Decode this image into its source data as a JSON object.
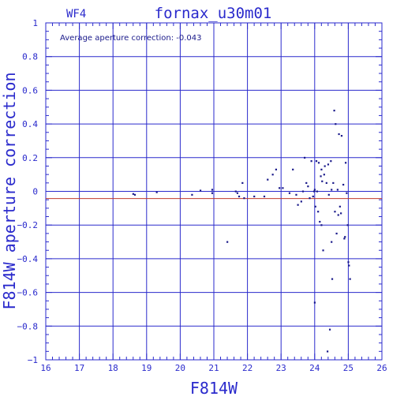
{
  "chart_data": {
    "type": "scatter",
    "chip_label": "WF4",
    "title": "fornax_u30m01",
    "xlabel": "F814W",
    "ylabel": "F814W aperture correction",
    "annotation": "Average aperture correction: -0.043",
    "xlim": [
      16,
      26
    ],
    "ylim": [
      -1,
      1
    ],
    "x_ticks": [
      16,
      17,
      18,
      19,
      20,
      21,
      22,
      23,
      24,
      25,
      26
    ],
    "y_ticks": [
      1,
      0.8,
      0.6,
      0.4,
      0.2,
      0,
      -0.2,
      -0.4,
      -0.6,
      -0.8,
      -1
    ],
    "x_tick_labels": [
      "16",
      "17",
      "18",
      "19",
      "20",
      "21",
      "22",
      "23",
      "24",
      "25",
      "26"
    ],
    "y_tick_labels": [
      "1",
      "0.8",
      "0.6",
      "0.4",
      "0.2",
      "0",
      "−0.2",
      "−0.4",
      "−0.6",
      "−0.8",
      "−1"
    ],
    "average_line": -0.043,
    "grid": true,
    "colors": {
      "axes": "#2a2acc",
      "grid": "#2a2acc",
      "points": "#1a1a8a",
      "average_line": "#c0392b"
    },
    "series": [
      {
        "x": [
          18.6,
          18.65,
          19.3,
          20.35,
          20.6,
          20.95,
          20.95,
          21.4,
          21.65,
          21.7,
          21.75,
          21.85,
          21.9,
          22.2,
          22.5,
          22.6,
          22.75,
          22.85,
          22.95,
          23.05,
          23.25,
          23.35,
          23.45,
          23.5,
          23.6,
          23.65,
          23.7,
          23.75,
          23.8,
          23.85,
          23.9,
          23.95,
          23.98,
          24.0,
          24.0,
          24.02,
          24.05,
          24.07,
          24.1,
          24.12,
          24.15,
          24.18,
          24.2,
          24.2,
          24.22,
          24.25,
          24.28,
          24.3,
          24.35,
          24.38,
          24.4,
          24.42,
          24.45,
          24.48,
          24.5,
          24.5,
          24.52,
          24.55,
          24.58,
          24.6,
          24.62,
          24.65,
          24.68,
          24.7,
          24.72,
          24.75,
          24.78,
          24.8,
          24.85,
          24.88,
          24.9,
          24.92,
          24.95,
          24.98,
          25.0,
          25.02,
          25.05
        ],
        "y": [
          -0.015,
          -0.02,
          -0.005,
          -0.02,
          0.005,
          0.01,
          -0.01,
          -0.3,
          0.0,
          -0.01,
          -0.03,
          0.05,
          -0.04,
          -0.03,
          -0.03,
          0.07,
          0.1,
          0.13,
          0.02,
          0.02,
          -0.01,
          0.13,
          -0.02,
          -0.08,
          -0.06,
          0.0,
          0.2,
          0.05,
          0.03,
          -0.04,
          0.18,
          -0.03,
          0.0,
          -0.66,
          0.01,
          -0.09,
          0.18,
          0.0,
          -0.12,
          0.17,
          -0.18,
          0.09,
          0.13,
          -0.2,
          0.06,
          -0.35,
          0.1,
          0.15,
          0.05,
          -0.95,
          0.16,
          -0.02,
          -0.82,
          0.18,
          -0.3,
          0.01,
          -0.52,
          0.05,
          0.48,
          -0.12,
          0.4,
          -0.25,
          0.01,
          -0.14,
          0.34,
          -0.09,
          -0.13,
          0.33,
          0.04,
          -0.28,
          -0.27,
          0.17,
          -0.01,
          -0.2,
          -0.42,
          -0.44,
          -0.52
        ]
      }
    ]
  }
}
